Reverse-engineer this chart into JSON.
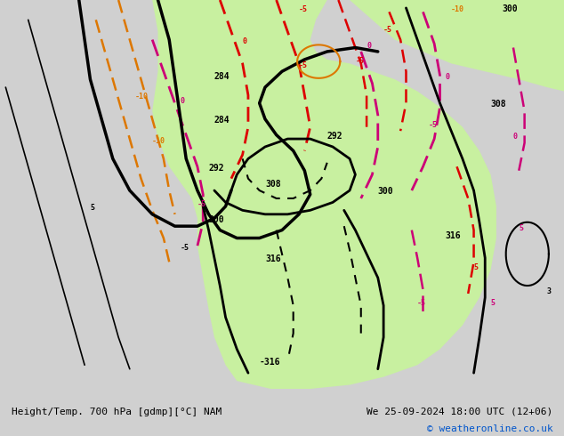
{
  "title_left": "Height/Temp. 700 hPa [gdmp][°C] NAM",
  "title_right": "We 25-09-2024 18:00 UTC (12+06)",
  "copyright": "© weatheronline.co.uk",
  "bg_color": "#d0d0d0",
  "warm_region_color": "#c8f0a0",
  "bottom_bg_color": "#e8e8e8",
  "font_family": "monospace"
}
